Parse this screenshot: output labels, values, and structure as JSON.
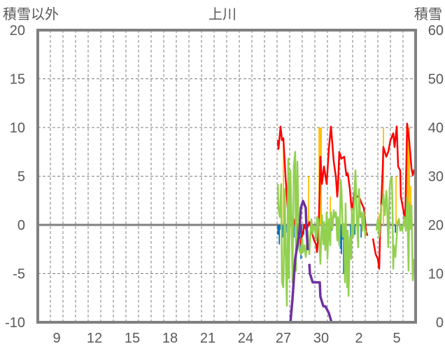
{
  "chart_data": {
    "type": "line",
    "title": "上川",
    "ylabel": "積雪以外",
    "y2label": "積雪",
    "xlim": [
      8,
      38
    ],
    "ylim": [
      -10,
      20
    ],
    "y2lim": [
      0,
      60
    ],
    "grid": true,
    "yticks": [
      "20",
      "15",
      "10",
      "5",
      "0",
      "-5",
      "-10"
    ],
    "ytick_values": [
      20,
      15,
      10,
      5,
      0,
      -5,
      -10
    ],
    "y2ticks": [
      "60",
      "50",
      "40",
      "30",
      "20",
      "10",
      "0"
    ],
    "y2tick_values": [
      60,
      50,
      40,
      30,
      20,
      10,
      0
    ],
    "xticks": [
      "9",
      "12",
      "15",
      "18",
      "21",
      "24",
      "27",
      "30",
      "2",
      "5"
    ],
    "xtick_positions": [
      9.5,
      12.5,
      15.5,
      18.5,
      21.5,
      24.5,
      27.5,
      30.5,
      33.5,
      36.5
    ],
    "colors": {
      "red": "#FF0000",
      "green": "#92D050",
      "purple": "#7030A0",
      "orange": "#FFC000",
      "blue": "#0070C0",
      "axis": "#808080"
    },
    "bars_positive": [
      [
        27.5,
        8.5
      ],
      [
        29.5,
        5.0
      ],
      [
        30.33,
        10
      ],
      [
        30.39,
        10
      ],
      [
        30.44,
        10
      ],
      [
        30.5,
        10
      ],
      [
        31.22,
        2.9
      ],
      [
        35.11,
        1.2
      ],
      [
        35.44,
        10
      ],
      [
        36.44,
        5.0
      ],
      [
        37.33,
        10
      ],
      [
        37.39,
        10
      ],
      [
        37.44,
        10
      ],
      [
        37.5,
        10
      ],
      [
        37.61,
        4
      ]
    ],
    "bars_negative": [
      [
        27.06,
        -1.0
      ],
      [
        27.11,
        -1.0
      ],
      [
        27.17,
        -2.0
      ],
      [
        27.28,
        -0.5
      ],
      [
        27.44,
        -1.3
      ],
      [
        27.56,
        -1.5
      ],
      [
        27.78,
        -0.8
      ],
      [
        28.0,
        -1.0
      ],
      [
        28.33,
        -1.3
      ],
      [
        28.56,
        -0.8
      ],
      [
        28.78,
        -1.5
      ],
      [
        28.89,
        -3.5
      ],
      [
        28.94,
        -2.5
      ],
      [
        29.11,
        -1.0
      ],
      [
        29.78,
        -0.6
      ],
      [
        30.11,
        -0.6
      ],
      [
        30.89,
        -0.8
      ],
      [
        31.33,
        -0.6
      ],
      [
        32.06,
        -2.5
      ],
      [
        32.11,
        -3.0
      ],
      [
        32.22,
        -1.5
      ],
      [
        32.28,
        -5.0
      ],
      [
        32.44,
        -3.0
      ],
      [
        32.83,
        -2.5
      ],
      [
        33.17,
        -1.0
      ],
      [
        33.39,
        -1.0
      ],
      [
        33.67,
        -1.3
      ],
      [
        36.39,
        -0.8
      ],
      [
        37.94,
        -1.0
      ]
    ],
    "series": [
      {
        "name": "red",
        "axis": "left",
        "points": [
          [
            27.06,
            8.7
          ],
          [
            27.11,
            7.8
          ],
          [
            27.28,
            10.1
          ],
          [
            27.39,
            8.7
          ],
          [
            27.5,
            8.9
          ],
          [
            27.67,
            4.9
          ],
          [
            27.78,
            2.9
          ],
          [
            27.94,
            0
          ],
          [
            28.06,
            1.3
          ],
          [
            28.22,
            -0.4
          ],
          [
            28.44,
            0.6
          ],
          [
            28.61,
            -0.1
          ],
          [
            28.78,
            -2.1
          ],
          [
            29.0,
            -1.1
          ],
          [
            29.17,
            0
          ],
          [
            29.33,
            -0.6
          ],
          [
            29.56,
            0.3
          ],
          [
            29.72,
            -0.4
          ],
          [
            29.89,
            -1.4
          ],
          [
            30.11,
            -2.1
          ],
          [
            30.17,
            -2.8
          ],
          [
            30.28,
            -1.1
          ],
          [
            30.39,
            3.7
          ],
          [
            30.44,
            7.0
          ],
          [
            30.56,
            4.2
          ],
          [
            30.72,
            6.0
          ],
          [
            30.94,
            4.2
          ],
          [
            31.11,
            7.8
          ],
          [
            31.28,
            10.1
          ],
          [
            31.5,
            6.5
          ],
          [
            31.67,
            4.9
          ],
          [
            31.78,
            2.9
          ],
          [
            31.83,
            3.7
          ],
          [
            31.94,
            7.5
          ],
          [
            32.11,
            6.8
          ],
          [
            32.33,
            7.0
          ],
          [
            32.5,
            5.1
          ],
          [
            32.61,
            5.3
          ],
          [
            32.78,
            3.7
          ],
          [
            32.94,
            1.3
          ],
          [
            33.17,
            3.7
          ],
          [
            33.33,
            2.9
          ],
          [
            33.5,
            2.9
          ],
          [
            33.72,
            2.2
          ],
          [
            33.89,
            1.7
          ],
          [
            34.06,
            -0.6
          ],
          [
            34.17,
            -1.1
          ],
          null,
          [
            34.61,
            -1.4
          ],
          [
            34.83,
            -3.0
          ],
          [
            35.0,
            -3.5
          ],
          [
            35.11,
            -4.5
          ],
          [
            35.17,
            -1.1
          ],
          [
            35.28,
            2.4
          ],
          [
            35.39,
            5.8
          ],
          [
            35.44,
            8.0
          ],
          [
            35.67,
            7.0
          ],
          [
            35.83,
            7.5
          ],
          [
            36.0,
            8.7
          ],
          [
            36.22,
            9.4
          ],
          [
            36.33,
            8.0
          ],
          [
            36.5,
            10.1
          ],
          [
            36.61,
            6.0
          ],
          [
            36.78,
            5.6
          ],
          [
            36.83,
            2.9
          ],
          [
            37.06,
            1.3
          ],
          [
            37.17,
            0.3
          ],
          [
            37.33,
            10.4
          ],
          [
            37.5,
            8.5
          ],
          [
            37.67,
            5.8
          ],
          [
            37.78,
            5.1
          ],
          [
            37.89,
            5.7
          ]
        ]
      },
      {
        "name": "green",
        "axis": "left",
        "points": [
          [
            27.06,
            4.2
          ],
          [
            27.11,
            1.7
          ],
          [
            27.22,
            0.8
          ],
          [
            27.33,
            4.2
          ],
          [
            27.39,
            -5.9
          ],
          [
            27.5,
            -6.4
          ],
          [
            27.61,
            3.7
          ],
          [
            27.67,
            -2.3
          ],
          [
            27.78,
            -8.3
          ],
          [
            27.89,
            6.8
          ],
          [
            27.94,
            -5.5
          ],
          [
            28.06,
            5.6
          ],
          [
            28.17,
            -1.2
          ],
          [
            28.22,
            -5.9
          ],
          [
            28.33,
            6.0
          ],
          [
            28.44,
            7.5
          ],
          [
            28.5,
            -4.7
          ],
          [
            28.61,
            6.5
          ],
          [
            28.72,
            -1.2
          ],
          [
            28.78,
            -2.6
          ],
          [
            28.89,
            -3.0
          ],
          [
            29.0,
            -1.4
          ],
          [
            29.06,
            -2.8
          ],
          [
            29.17,
            -2.1
          ],
          [
            29.28,
            -3.3
          ],
          [
            29.33,
            -2.6
          ],
          [
            29.44,
            -0.6
          ],
          [
            29.56,
            -3.0
          ],
          [
            29.61,
            -1.9
          ],
          [
            29.72,
            0.6
          ],
          [
            29.83,
            -0.9
          ],
          [
            29.89,
            -0.1
          ],
          [
            30.0,
            -0.4
          ],
          [
            30.11,
            -1.6
          ],
          [
            30.17,
            0.8
          ],
          [
            30.28,
            0.6
          ],
          [
            30.39,
            -2.6
          ],
          [
            30.44,
            -4.0
          ],
          [
            30.56,
            1.0
          ],
          [
            30.67,
            -2.0
          ],
          [
            30.72,
            0.3
          ],
          [
            30.83,
            -2.6
          ],
          [
            30.94,
            1.3
          ],
          [
            31.0,
            -3.5
          ],
          [
            31.11,
            0.6
          ],
          [
            31.22,
            -2.1
          ],
          [
            31.28,
            1.3
          ],
          [
            31.39,
            -0.4
          ],
          [
            31.5,
            1.5
          ],
          [
            31.56,
            0.8
          ],
          [
            31.67,
            1.3
          ],
          [
            31.78,
            -1.6
          ],
          [
            31.83,
            0.8
          ],
          [
            31.94,
            -2.1
          ],
          [
            32.06,
            4.6
          ],
          [
            32.11,
            3.7
          ],
          [
            32.22,
            -1.2
          ],
          [
            32.33,
            0.1
          ],
          [
            32.39,
            -5.9
          ],
          [
            32.44,
            2.2
          ],
          [
            32.56,
            -6.4
          ],
          [
            32.61,
            -0.6
          ],
          [
            32.67,
            -7.3
          ],
          [
            32.78,
            -1.2
          ],
          [
            32.89,
            -3.5
          ],
          [
            32.94,
            1.7
          ],
          [
            33.06,
            -1.2
          ],
          [
            33.17,
            4.2
          ],
          [
            33.22,
            5.6
          ],
          [
            33.33,
            0.8
          ],
          [
            33.44,
            -2.3
          ],
          [
            33.5,
            3.7
          ],
          [
            33.61,
            0.8
          ],
          [
            33.72,
            1.3
          ],
          [
            33.78,
            -0.6
          ],
          [
            33.89,
            1.3
          ],
          [
            34.0,
            -1.2
          ],
          [
            34.06,
            -0.6
          ],
          null,
          [
            34.89,
            -0.6
          ],
          [
            35.0,
            0.6
          ],
          [
            35.11,
            -1.2
          ],
          [
            35.17,
            -0.1
          ],
          [
            35.28,
            2.0
          ],
          [
            35.39,
            2.2
          ],
          [
            35.44,
            3.2
          ],
          [
            35.56,
            1.0
          ],
          [
            35.67,
            3.5
          ],
          [
            35.72,
            2.7
          ],
          [
            35.83,
            -2.3
          ],
          [
            35.94,
            3.7
          ],
          [
            36.0,
            4.6
          ],
          [
            36.11,
            4.9
          ],
          [
            36.17,
            1.3
          ],
          [
            36.22,
            -4.5
          ],
          [
            36.28,
            -2.1
          ],
          [
            36.39,
            -3.3
          ],
          [
            36.5,
            -1.2
          ],
          [
            36.56,
            0.3
          ],
          [
            36.67,
            0.6
          ],
          [
            36.78,
            -0.6
          ],
          [
            36.83,
            -0.1
          ],
          [
            36.94,
            -0.6
          ],
          [
            37.06,
            0.3
          ],
          [
            37.11,
            0.8
          ],
          [
            37.22,
            -0.6
          ],
          [
            37.33,
            2.9
          ],
          [
            37.39,
            -1.2
          ],
          [
            37.44,
            -4.7
          ],
          [
            37.5,
            2.2
          ],
          [
            37.61,
            -0.4
          ],
          [
            37.67,
            2.0
          ],
          [
            37.78,
            -5.7
          ],
          [
            37.89,
            -3.5
          ]
        ]
      },
      {
        "name": "purple",
        "axis": "right",
        "points": [
          [
            26.94,
            0
          ],
          [
            28.06,
            0
          ],
          [
            28.22,
            4.7
          ],
          [
            28.44,
            13
          ],
          [
            28.61,
            15.8
          ],
          [
            28.78,
            18.7
          ],
          [
            28.89,
            23.5
          ],
          [
            29.06,
            24.9
          ],
          [
            29.28,
            23.5
          ],
          [
            29.33,
            19.7
          ],
          [
            29.44,
            14.8
          ],
          null,
          [
            29.56,
            12
          ],
          [
            29.61,
            10
          ],
          [
            29.83,
            8.2
          ],
          [
            30.39,
            8.2
          ],
          [
            30.44,
            5.3
          ],
          [
            30.67,
            3.3
          ],
          [
            30.83,
            3.3
          ],
          [
            31.11,
            1.9
          ],
          [
            31.28,
            0.4
          ],
          [
            31.33,
            0
          ],
          [
            34.17,
            0
          ],
          null,
          [
            34.61,
            0
          ],
          [
            37.89,
            0
          ]
        ]
      }
    ]
  }
}
